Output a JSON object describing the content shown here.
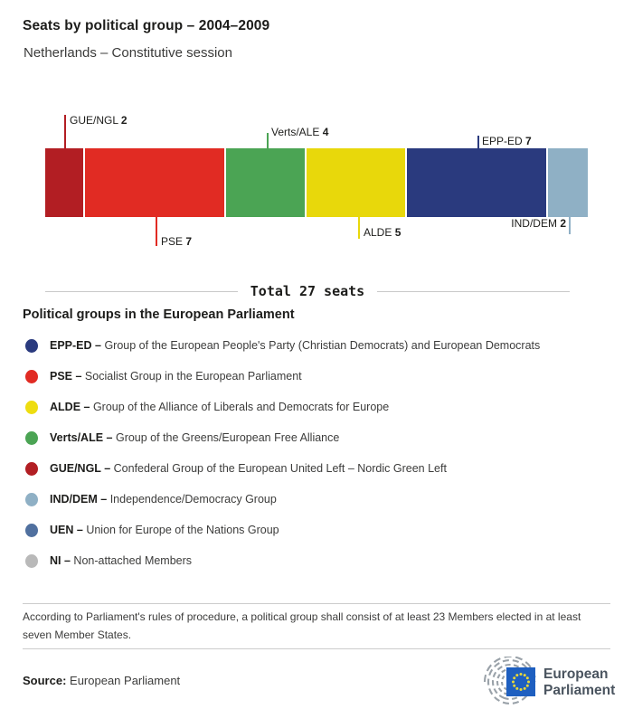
{
  "header": {
    "title": "Seats by political group – 2004–2009",
    "subtitle": "Netherlands – Constitutive session"
  },
  "chart_data": {
    "type": "bar",
    "orientation": "horizontal-stacked",
    "title": "Seats by political group – 2004–2009",
    "subtitle": "Netherlands – Constitutive session",
    "total_seats": 27,
    "total_label": "Total 27 seats",
    "categories": [
      "GUE/NGL",
      "PSE",
      "Verts/ALE",
      "ALDE",
      "EPP-ED",
      "IND/DEM"
    ],
    "values": [
      2,
      7,
      4,
      5,
      7,
      2
    ],
    "segments": [
      {
        "name": "GUE/NGL",
        "value": 2,
        "color": "#b21e23",
        "label_position": "top"
      },
      {
        "name": "PSE",
        "value": 7,
        "color": "#e12b23",
        "label_position": "bottom"
      },
      {
        "name": "Verts/ALE",
        "value": 4,
        "color": "#4ba454",
        "label_position": "top"
      },
      {
        "name": "ALDE",
        "value": 5,
        "color": "#e8d80b",
        "label_position": "bottom"
      },
      {
        "name": "EPP-ED",
        "value": 7,
        "color": "#2a3a7e",
        "label_position": "top"
      },
      {
        "name": "IND/DEM",
        "value": 2,
        "color": "#8fb0c5",
        "label_position": "bottom"
      }
    ]
  },
  "legend": {
    "heading": "Political groups in the European Parliament",
    "items": [
      {
        "abbr": "EPP-ED –",
        "desc": "Group of the European People's Party (Christian Democrats) and European Democrats",
        "color": "#2a3a7e"
      },
      {
        "abbr": "PSE –",
        "desc": "Socialist Group in the European Parliament",
        "color": "#e12b23"
      },
      {
        "abbr": "ALDE –",
        "desc": "Group of the Alliance of Liberals and Democrats for Europe",
        "color": "#eedd10"
      },
      {
        "abbr": "Verts/ALE –",
        "desc": "Group of the Greens/European Free Alliance",
        "color": "#4ba454"
      },
      {
        "abbr": "GUE/NGL –",
        "desc": "Confederal Group of the European United Left – Nordic Green Left",
        "color": "#b21e23"
      },
      {
        "abbr": "IND/DEM –",
        "desc": "Independence/Democracy Group",
        "color": "#8fb0c5"
      },
      {
        "abbr": "UEN –",
        "desc": "Union for Europe of the Nations Group",
        "color": "#50709f"
      },
      {
        "abbr": "NI –",
        "desc": "Non-attached Members",
        "color": "#b9b9b9"
      }
    ]
  },
  "footer": {
    "note": "According to Parliament's rules of procedure, a political group shall consist of at least 23 Members elected in at least seven Member States.",
    "source_label": "Source:",
    "source_value": "European Parliament",
    "logo": {
      "line1": "European",
      "line2": "Parliament"
    }
  }
}
